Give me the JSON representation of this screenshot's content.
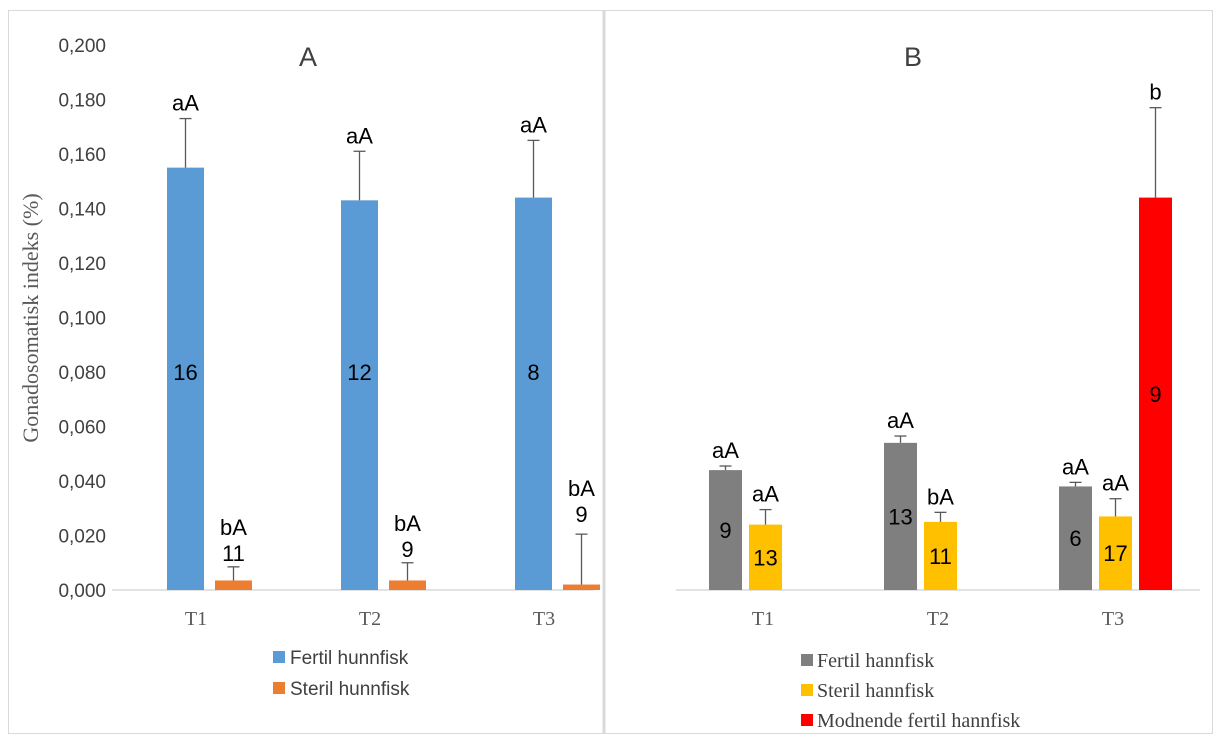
{
  "chart_data": [
    {
      "type": "bar",
      "title": "A",
      "ylabel": "Gonadosomatisk  indeks (%)",
      "ylim": [
        0,
        0.2
      ],
      "ytick_step": 0.02,
      "ytick_labels": [
        "0,000",
        "0,020",
        "0,040",
        "0,060",
        "0,080",
        "0,100",
        "0,120",
        "0,140",
        "0,160",
        "0,180",
        "0,200"
      ],
      "categories": [
        "T1",
        "T2",
        "T3"
      ],
      "grid": false,
      "legend": "bottom",
      "series": [
        {
          "name": "Fertil hunnfisk",
          "color": "#5B9BD5",
          "values": [
            0.155,
            0.143,
            0.144
          ],
          "error_plus": [
            0.018,
            0.018,
            0.021
          ],
          "n_labels": [
            "16",
            "12",
            "8"
          ],
          "sig_labels": [
            "aA",
            "aA",
            "aA"
          ]
        },
        {
          "name": "Steril hunnfisk",
          "color": "#ED7D31",
          "values": [
            0.0035,
            0.0035,
            0.002
          ],
          "error_plus": [
            0.005,
            0.0065,
            0.0185
          ],
          "n_labels": [
            "11",
            "9",
            "9"
          ],
          "sig_labels": [
            "bA",
            "bA",
            "bA"
          ]
        }
      ]
    },
    {
      "type": "bar",
      "title": "B",
      "ylim": [
        0,
        0.2
      ],
      "categories": [
        "T1",
        "T2",
        "T3"
      ],
      "grid": false,
      "legend": "bottom",
      "series": [
        {
          "name": "Fertil hannfisk",
          "color": "#7F7F7F",
          "values": [
            0.044,
            0.054,
            0.038
          ],
          "error_plus": [
            0.0015,
            0.0025,
            0.0015
          ],
          "n_labels": [
            "9",
            "13",
            "6"
          ],
          "sig_labels": [
            "aA",
            "aA",
            "aA"
          ]
        },
        {
          "name": "Steril hannfisk",
          "color": "#FFC000",
          "values": [
            0.024,
            0.025,
            0.027
          ],
          "error_plus": [
            0.0055,
            0.0035,
            0.0065
          ],
          "n_labels": [
            "13",
            "11",
            "17"
          ],
          "sig_labels": [
            "aA",
            "bA",
            "aA"
          ]
        },
        {
          "name": "Modnende fertil hannfisk",
          "color": "#FF0000",
          "values": [
            null,
            null,
            0.144
          ],
          "error_plus": [
            null,
            null,
            0.033
          ],
          "n_labels": [
            null,
            null,
            "9"
          ],
          "sig_labels": [
            null,
            null,
            "b"
          ]
        }
      ]
    }
  ]
}
